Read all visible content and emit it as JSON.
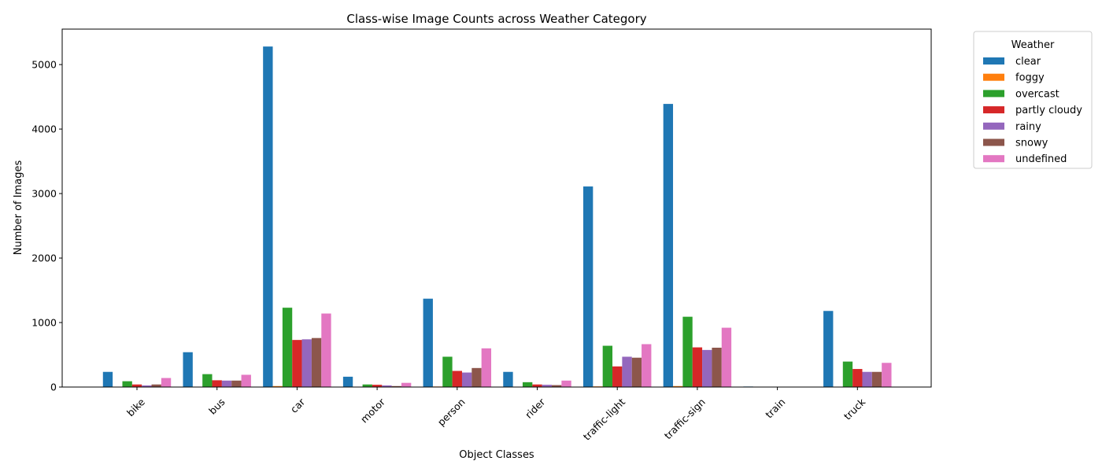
{
  "chart_data": {
    "type": "bar",
    "title": "Class-wise Image Counts across Weather Category",
    "xlabel": "Object Classes",
    "ylabel": "Number of Images",
    "ylim": [
      0,
      5550
    ],
    "yticks": [
      0,
      1000,
      2000,
      3000,
      4000,
      5000
    ],
    "grid": false,
    "legend": {
      "title": "Weather",
      "placement": "outside-right-top"
    },
    "categories": [
      "bike",
      "bus",
      "car",
      "motor",
      "person",
      "rider",
      "traffic-light",
      "traffic-sign",
      "train",
      "truck"
    ],
    "series": [
      {
        "name": "clear",
        "color": "#1f77b4",
        "values": [
          235,
          540,
          5280,
          160,
          1370,
          235,
          3110,
          4390,
          8,
          1180
        ]
      },
      {
        "name": "foggy",
        "color": "#ff7f0e",
        "values": [
          2,
          5,
          15,
          2,
          8,
          2,
          10,
          15,
          0,
          5
        ]
      },
      {
        "name": "overcast",
        "color": "#2ca02c",
        "values": [
          90,
          200,
          1230,
          40,
          470,
          75,
          640,
          1090,
          2,
          395
        ]
      },
      {
        "name": "partly cloudy",
        "color": "#d62728",
        "values": [
          40,
          105,
          730,
          35,
          250,
          40,
          320,
          615,
          1,
          280
        ]
      },
      {
        "name": "rainy",
        "color": "#9467bd",
        "values": [
          25,
          100,
          740,
          25,
          225,
          35,
          470,
          575,
          1,
          235
        ]
      },
      {
        "name": "snowy",
        "color": "#8c564b",
        "values": [
          40,
          100,
          760,
          15,
          295,
          30,
          455,
          610,
          1,
          235
        ]
      },
      {
        "name": "undefined",
        "color": "#e377c2",
        "values": [
          140,
          190,
          1140,
          65,
          600,
          100,
          665,
          920,
          2,
          375
        ]
      }
    ]
  }
}
